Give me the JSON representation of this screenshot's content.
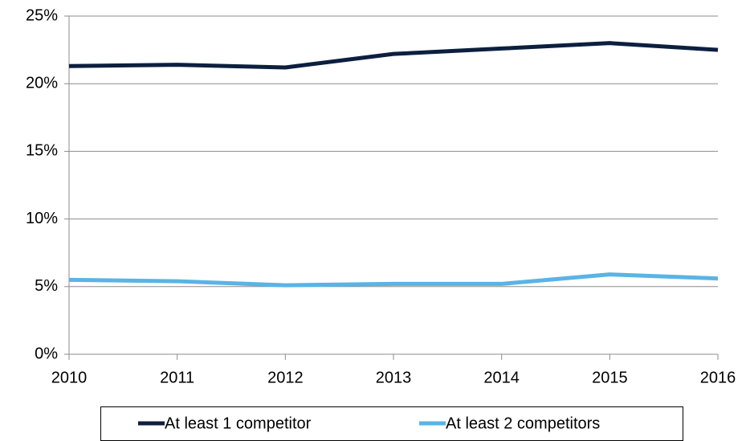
{
  "chart_data": {
    "type": "line",
    "x": [
      2010,
      2011,
      2012,
      2013,
      2014,
      2015,
      2016
    ],
    "xlim": [
      2010,
      2016
    ],
    "xticks": [
      2010,
      2011,
      2012,
      2013,
      2014,
      2015,
      2016
    ],
    "ylim": [
      0,
      25
    ],
    "yticks": [
      {
        "value": 0,
        "label": "0%"
      },
      {
        "value": 5,
        "label": "5%"
      },
      {
        "value": 10,
        "label": "10%"
      },
      {
        "value": 15,
        "label": "15%"
      },
      {
        "value": 20,
        "label": "20%"
      },
      {
        "value": 25,
        "label": "25%"
      }
    ],
    "grid": true,
    "legend": "bottom",
    "series": [
      {
        "name": "At least 1 competitor",
        "color": "#0c1f3f",
        "values": [
          21.3,
          21.4,
          21.2,
          22.2,
          22.6,
          23.0,
          22.5
        ]
      },
      {
        "name": "At least 2 competitors",
        "color": "#5ab4e5",
        "values": [
          5.5,
          5.4,
          5.1,
          5.2,
          5.2,
          5.9,
          5.6
        ]
      }
    ]
  }
}
